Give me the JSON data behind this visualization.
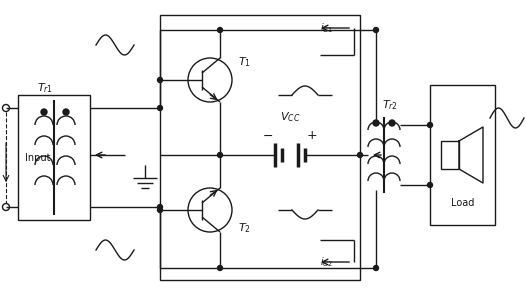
{
  "bg_color": "#ffffff",
  "line_color": "#1a1a1a",
  "fig_width": 5.26,
  "fig_height": 2.94,
  "dpi": 100
}
